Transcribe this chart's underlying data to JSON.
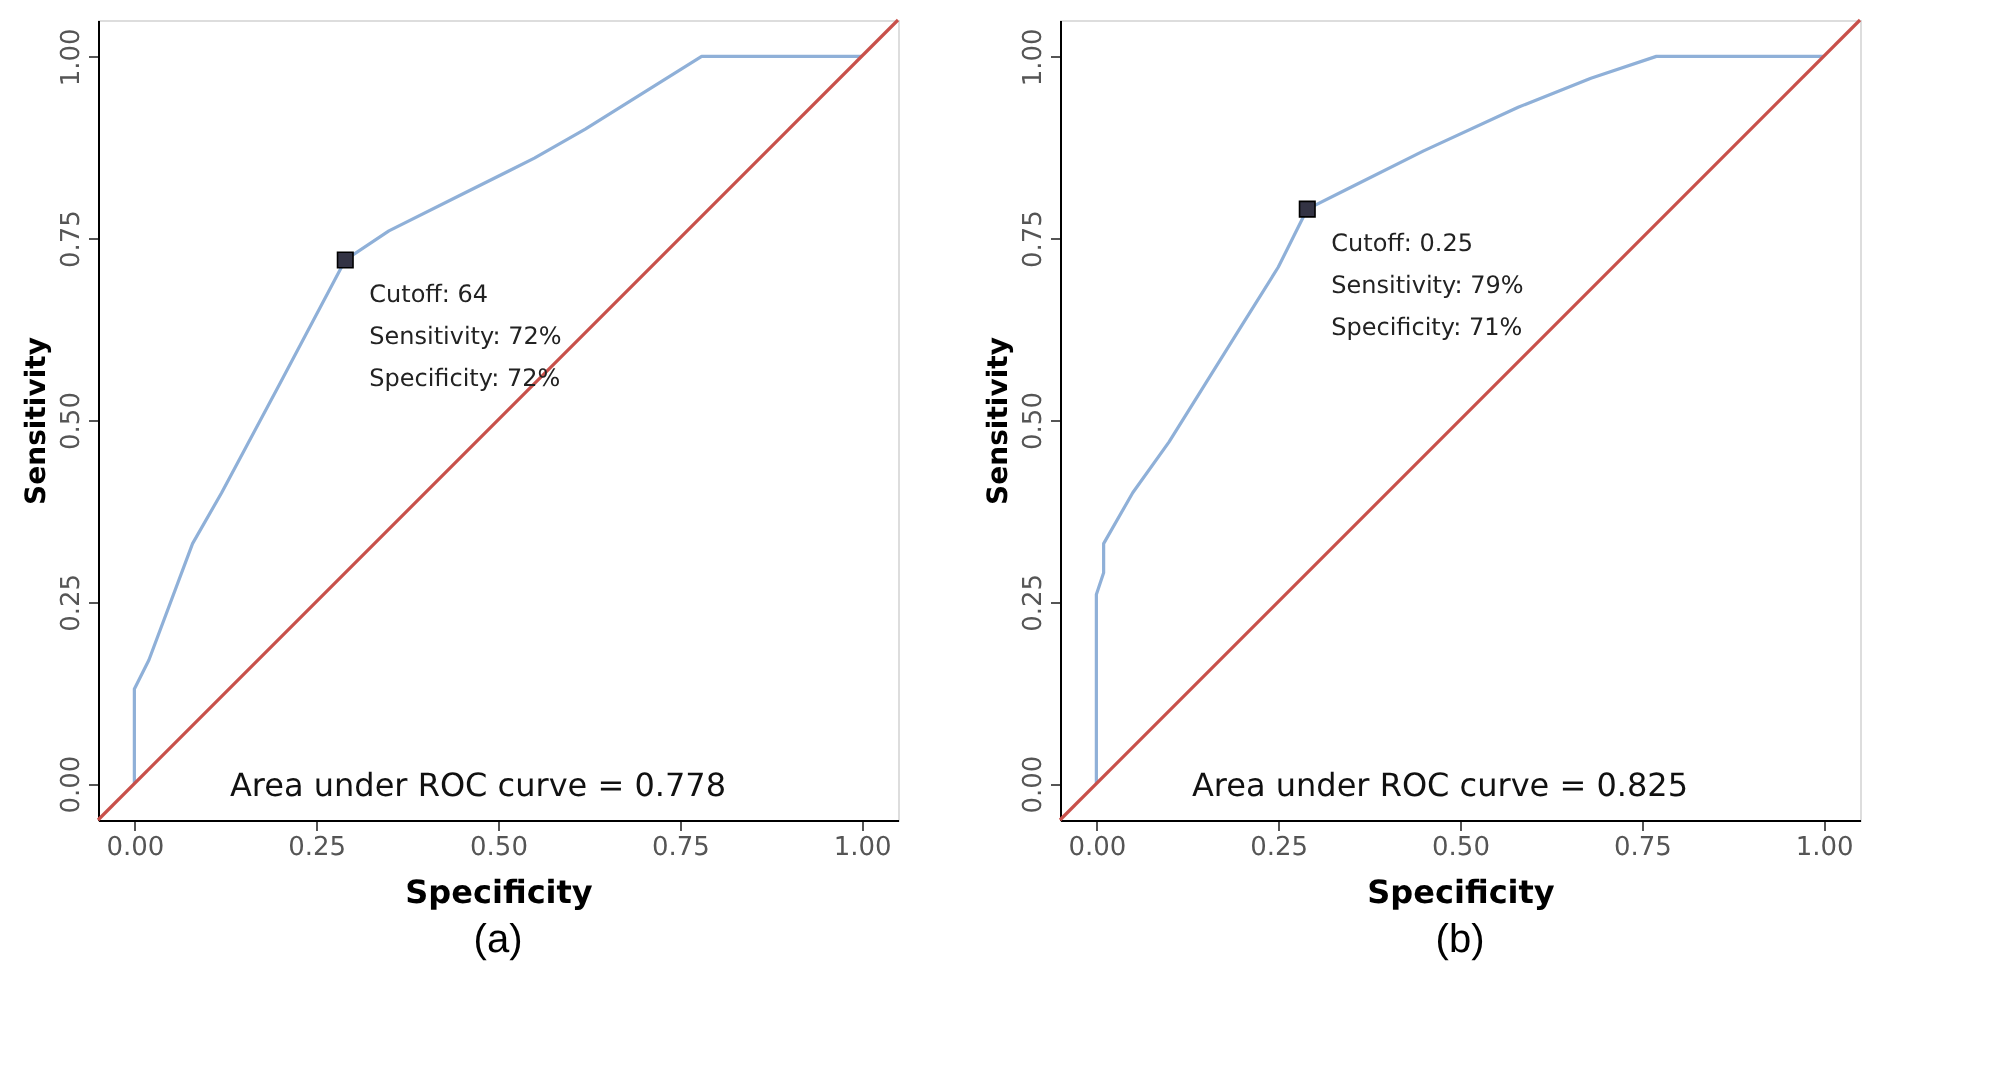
{
  "chart_data": [
    {
      "type": "line",
      "title": "(a)",
      "xlabel": "Specificity",
      "ylabel": "Sensitivity",
      "xlim": [
        -0.05,
        1.05
      ],
      "ylim": [
        -0.05,
        1.05
      ],
      "xticks": [
        {
          "value": 0,
          "label": "0.00"
        },
        {
          "value": 0.25,
          "label": "0.25"
        },
        {
          "value": 0.5,
          "label": "0.50"
        },
        {
          "value": 0.75,
          "label": "0.75"
        },
        {
          "value": 1,
          "label": "1.00"
        }
      ],
      "yticks": [
        {
          "value": 0,
          "label": "0.00"
        },
        {
          "value": 0.25,
          "label": "0.25"
        },
        {
          "value": 0.5,
          "label": "0.50"
        },
        {
          "value": 0.75,
          "label": "0.75"
        },
        {
          "value": 1,
          "label": "1.00"
        }
      ],
      "grid": false,
      "series": [
        {
          "color": "#8fb0d8",
          "marker": "none",
          "x": [
            0,
            0,
            0.02,
            0.08,
            0.12,
            0.2,
            0.29,
            0.35,
            0.45,
            0.55,
            0.62,
            0.78,
            1.0
          ],
          "values": [
            0,
            0.13,
            0.17,
            0.33,
            0.4,
            0.55,
            0.72,
            0.76,
            0.81,
            0.86,
            0.9,
            1.0,
            1.0
          ]
        },
        {
          "color": "#c8504a",
          "marker": "none",
          "x": [
            -0.05,
            1.05
          ],
          "values": [
            -0.05,
            1.05
          ]
        },
        {
          "type": "scatter",
          "color": "#333344",
          "marker": "square",
          "x": [
            0.29
          ],
          "values": [
            0.72
          ]
        }
      ],
      "annotations": [
        {
          "text": "Cutoff: 64\nSensitivity: 72%\nSpecificity: 72%",
          "x": 0.29,
          "y": 0.72
        },
        "Area under ROC curve =  0.778"
      ]
    },
    {
      "type": "line",
      "title": "(b)",
      "xlabel": "Specificity",
      "ylabel": "Sensitivity",
      "xlim": [
        -0.05,
        1.05
      ],
      "ylim": [
        -0.05,
        1.05
      ],
      "xticks": [
        {
          "value": 0,
          "label": "0.00"
        },
        {
          "value": 0.25,
          "label": "0.25"
        },
        {
          "value": 0.5,
          "label": "0.50"
        },
        {
          "value": 0.75,
          "label": "0.75"
        },
        {
          "value": 1,
          "label": "1.00"
        }
      ],
      "yticks": [
        {
          "value": 0,
          "label": "0.00"
        },
        {
          "value": 0.25,
          "label": "0.25"
        },
        {
          "value": 0.5,
          "label": "0.50"
        },
        {
          "value": 0.75,
          "label": "0.75"
        },
        {
          "value": 1,
          "label": "1.00"
        }
      ],
      "grid": false,
      "series": [
        {
          "color": "#8fb0d8",
          "marker": "none",
          "x": [
            0,
            0,
            0.01,
            0.01,
            0.05,
            0.1,
            0.15,
            0.2,
            0.25,
            0.29,
            0.35,
            0.45,
            0.58,
            0.68,
            0.77,
            1.0
          ],
          "values": [
            0,
            0.26,
            0.29,
            0.33,
            0.4,
            0.47,
            0.55,
            0.63,
            0.71,
            0.79,
            0.82,
            0.87,
            0.93,
            0.97,
            1.0,
            1.0
          ]
        },
        {
          "color": "#c8504a",
          "marker": "none",
          "x": [
            -0.05,
            1.05
          ],
          "values": [
            -0.05,
            1.05
          ]
        },
        {
          "type": "scatter",
          "color": "#333344",
          "marker": "square",
          "x": [
            0.29
          ],
          "values": [
            0.79
          ]
        }
      ],
      "annotations": [
        {
          "text": "Cutoff: 0.25\nSensitivity: 79%\nSpecificity: 71%",
          "x": 0.29,
          "y": 0.79
        },
        "Area under ROC curve =  0.825"
      ]
    }
  ]
}
